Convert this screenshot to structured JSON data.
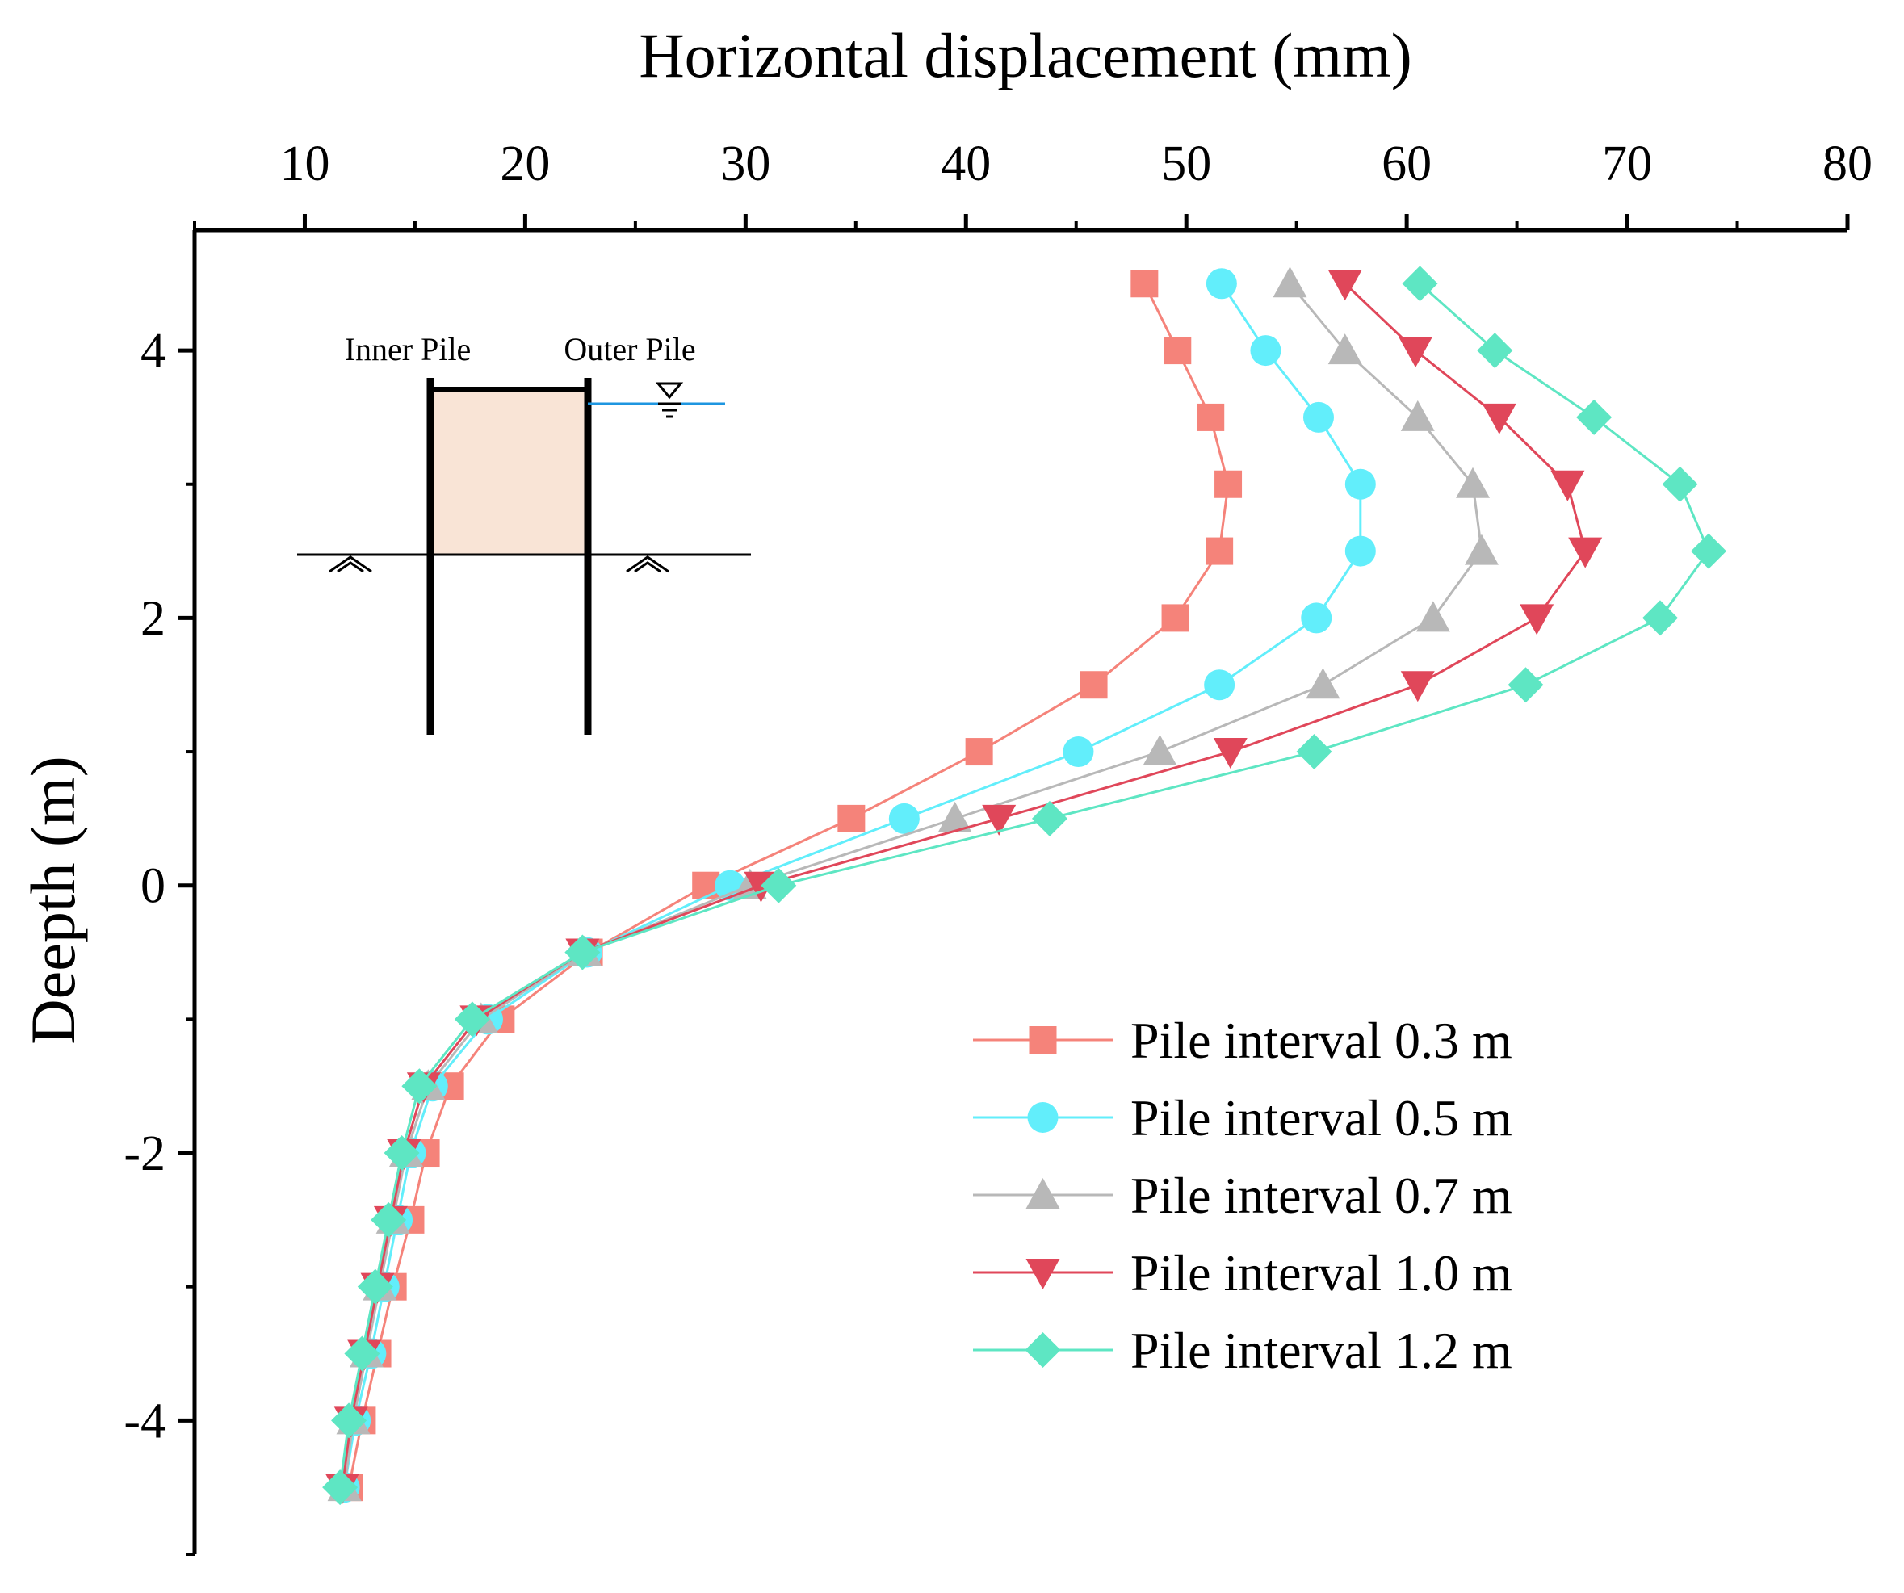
{
  "chart_data": {
    "type": "line",
    "xlabel": "Horizontal displacement (mm)",
    "ylabel": "Deepth (m)",
    "xlim": [
      5,
      80
    ],
    "ylim": [
      -5,
      4.9
    ],
    "x_axis_position": "top",
    "xticks": [
      10,
      20,
      30,
      40,
      50,
      60,
      70,
      80
    ],
    "yticks": [
      4,
      2,
      0,
      -2,
      -4
    ],
    "grid": false,
    "legend_position": "lower-right",
    "depths": [
      4.5,
      4.0,
      3.5,
      3.0,
      2.5,
      2.0,
      1.5,
      1.0,
      0.5,
      0.0,
      -0.5,
      -1.0,
      -1.5,
      -2.0,
      -2.5,
      -3.0,
      -3.5,
      -4.0,
      -4.5
    ],
    "series": [
      {
        "name": "Pile interval 0.3 m",
        "color": "#f5837a",
        "marker": "square",
        "values": [
          48.1,
          49.6,
          51.1,
          51.9,
          51.5,
          49.5,
          45.8,
          40.6,
          34.8,
          28.2,
          22.9,
          18.9,
          16.6,
          15.5,
          14.8,
          14.0,
          13.3,
          12.6,
          12.0
        ]
      },
      {
        "name": "Pile interval 0.5 m",
        "color": "#62eefb",
        "marker": "circle",
        "values": [
          51.6,
          53.6,
          56.0,
          57.9,
          57.9,
          55.9,
          51.5,
          45.1,
          37.2,
          29.3,
          22.8,
          18.3,
          15.8,
          14.8,
          14.2,
          13.6,
          13.0,
          12.3,
          11.8
        ]
      },
      {
        "name": "Pile interval 0.7 m",
        "color": "#b8b8b8",
        "marker": "triangle-up",
        "values": [
          54.7,
          57.2,
          60.5,
          63.0,
          63.4,
          61.2,
          56.2,
          48.8,
          39.5,
          30.2,
          22.7,
          18.0,
          15.6,
          14.6,
          14.0,
          13.4,
          12.8,
          12.2,
          11.8
        ]
      },
      {
        "name": "Pile interval 1.0 m",
        "color": "#e0475a",
        "marker": "triangle-down",
        "values": [
          57.2,
          60.4,
          64.2,
          67.3,
          68.1,
          65.9,
          60.5,
          52.0,
          41.5,
          30.7,
          22.6,
          17.8,
          15.4,
          14.5,
          13.9,
          13.3,
          12.7,
          12.1,
          11.7
        ]
      },
      {
        "name": "Pile interval 1.2 m",
        "color": "#5ee6c3",
        "marker": "diamond",
        "values": [
          60.6,
          64.0,
          68.5,
          72.4,
          73.7,
          71.5,
          65.4,
          55.8,
          43.8,
          31.5,
          22.6,
          17.6,
          15.2,
          14.4,
          13.8,
          13.2,
          12.6,
          12.0,
          11.6
        ]
      }
    ]
  },
  "inset": {
    "inner_pile_label": "Inner Pile",
    "outer_pile_label": "Outer Pile",
    "soil_fill": "#f9e4d6",
    "water_line_color": "#1e96e0"
  }
}
